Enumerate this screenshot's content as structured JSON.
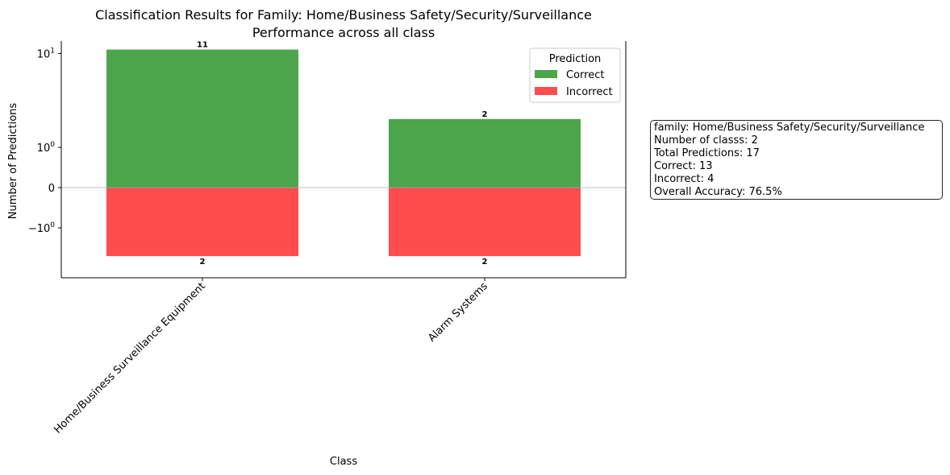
{
  "chart_data": {
    "type": "bar",
    "title": "Classification Results for Family: Home/Business Safety/Security/Surveillance",
    "subtitle": "Performance across all class",
    "xlabel": "Class",
    "ylabel": "Number of Predictions",
    "yscale": "symlog",
    "categories": [
      "Home/Business Surveillance Equipment",
      "Alarm Systems"
    ],
    "series": [
      {
        "name": "Correct",
        "color": "#4ca64c",
        "values": [
          11,
          2
        ],
        "labels": [
          "11",
          "2"
        ]
      },
      {
        "name": "Incorrect",
        "color": "#ff4c4c",
        "values": [
          -2,
          -2
        ],
        "labels": [
          "2",
          "2"
        ]
      }
    ],
    "yticks": [
      {
        "value": 10,
        "label": "10",
        "exp": "1"
      },
      {
        "value": 1,
        "label": "10",
        "exp": "0"
      },
      {
        "value": 0,
        "label": "0",
        "exp": ""
      },
      {
        "value": -1,
        "label": "−10",
        "exp": "0"
      }
    ],
    "legend": {
      "title": "Prediction",
      "position": "top-right"
    },
    "grid": false
  },
  "info_box": {
    "lines": [
      "family: Home/Business Safety/Security/Surveillance",
      "Number of classs: 2",
      "Total Predictions: 17",
      "Correct: 13",
      "Incorrect: 4",
      "Overall Accuracy: 76.5%"
    ]
  }
}
